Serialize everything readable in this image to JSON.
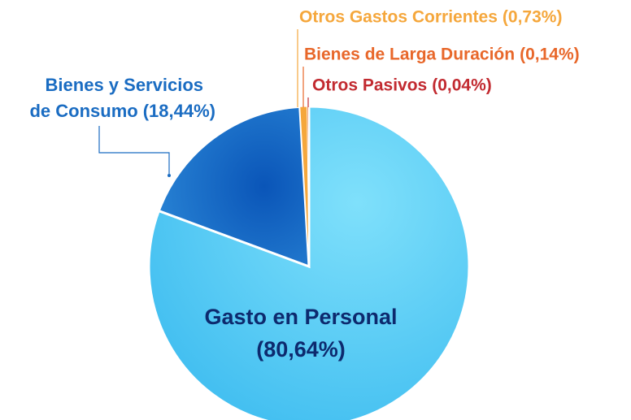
{
  "chart_data": {
    "type": "pie",
    "categories": [
      "Gasto en Personal",
      "Bienes y Servicios de Consumo",
      "Otros Gastos Corrientes",
      "Bienes de Larga Duración",
      "Otros Pasivos"
    ],
    "values": [
      80.64,
      18.44,
      0.73,
      0.14,
      0.04
    ],
    "value_labels": [
      "(80,64%)",
      "(18,44%)",
      "(0,73%)",
      "(0,14%)",
      "(0,04%)"
    ],
    "colors": [
      "#4ccdf6",
      "#1a6cc2",
      "#f5a73c",
      "#e8672a",
      "#c22a30"
    ]
  }
}
